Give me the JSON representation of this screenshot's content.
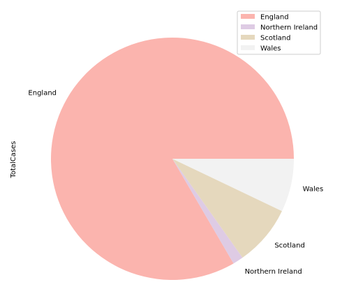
{
  "chart_data": {
    "type": "pie",
    "ylabel": "TotalCases",
    "legend_position": "top-right",
    "categories": [
      "England",
      "Northern Ireland",
      "Scotland",
      "Wales"
    ],
    "values": [
      83.4,
      1.4,
      8.1,
      7.1
    ],
    "colors": [
      "#fbb4ae",
      "#decbe4",
      "#e5d8bd",
      "#f2f2f2"
    ],
    "start_angle": 0,
    "direction": "counterclockwise",
    "legend": [
      "England",
      "Northern Ireland",
      "Scotland",
      "Wales"
    ]
  }
}
